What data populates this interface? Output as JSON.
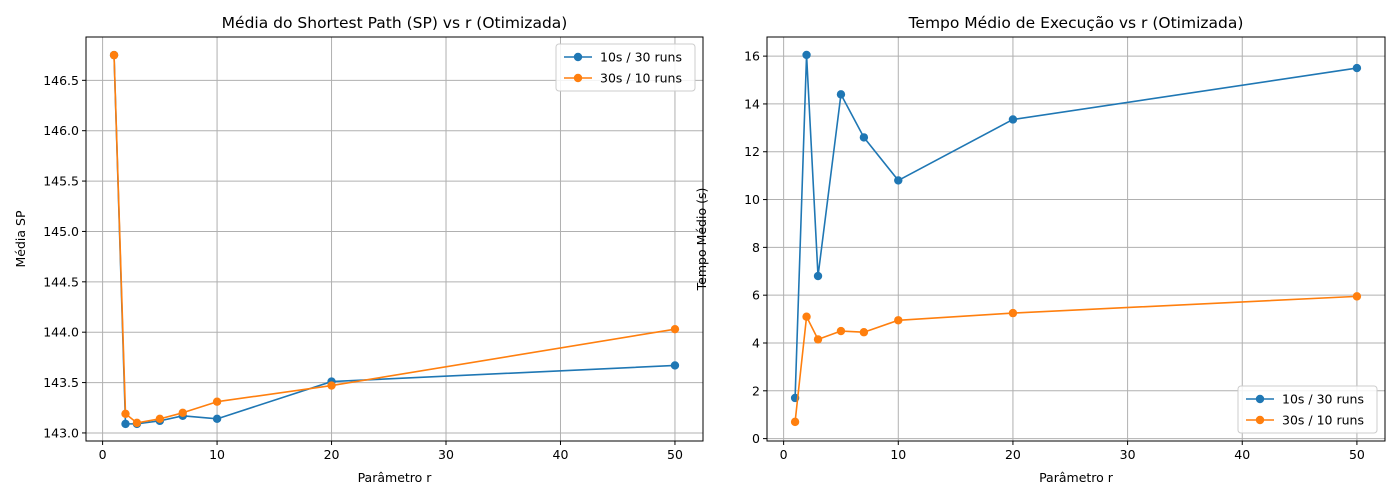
{
  "chart_data": [
    {
      "type": "line",
      "title": "Média do Shortest Path (SP) vs r (Otimizada)",
      "xlabel": "Parâmetro r",
      "ylabel": "Média SP",
      "xlim": [
        -1.45,
        52.45
      ],
      "ylim": [
        142.92,
        146.93
      ],
      "xticks": [
        0,
        10,
        20,
        30,
        40,
        50
      ],
      "yticks": [
        143.0,
        143.5,
        144.0,
        144.5,
        145.0,
        145.5,
        146.0,
        146.5
      ],
      "ytick_labels": [
        "143.0",
        "143.5",
        "144.0",
        "144.5",
        "145.0",
        "145.5",
        "146.0",
        "146.5"
      ],
      "grid": true,
      "legend_position": "top-right",
      "x": [
        1,
        2,
        3,
        5,
        7,
        10,
        20,
        50
      ],
      "series": [
        {
          "name": "10s / 30 runs",
          "color": "#1f77b4",
          "values": [
            146.75,
            143.09,
            143.09,
            143.12,
            143.17,
            143.14,
            143.51,
            143.67
          ]
        },
        {
          "name": "30s / 10 runs",
          "color": "#ff7f0e",
          "values": [
            146.75,
            143.19,
            143.1,
            143.14,
            143.2,
            143.31,
            143.47,
            144.03
          ]
        }
      ]
    },
    {
      "type": "line",
      "title": "Tempo Médio de Execução vs r (Otimizada)",
      "xlabel": "Parâmetro r",
      "ylabel": "Tempo Médio (s)",
      "xlim": [
        -1.45,
        52.45
      ],
      "ylim": [
        -0.1,
        16.8
      ],
      "xticks": [
        0,
        10,
        20,
        30,
        40,
        50
      ],
      "yticks": [
        0,
        2,
        4,
        6,
        8,
        10,
        12,
        14,
        16
      ],
      "ytick_labels": [
        "0",
        "2",
        "4",
        "6",
        "8",
        "10",
        "12",
        "14",
        "16"
      ],
      "grid": true,
      "legend_position": "bottom-right",
      "x": [
        1,
        2,
        3,
        5,
        7,
        10,
        20,
        50
      ],
      "series": [
        {
          "name": "10s / 30 runs",
          "color": "#1f77b4",
          "values": [
            1.7,
            16.05,
            6.8,
            14.4,
            12.6,
            10.8,
            13.35,
            15.5
          ]
        },
        {
          "name": "30s / 10 runs",
          "color": "#ff7f0e",
          "values": [
            0.7,
            5.1,
            4.15,
            4.5,
            4.45,
            4.95,
            5.25,
            5.95
          ]
        }
      ]
    }
  ]
}
